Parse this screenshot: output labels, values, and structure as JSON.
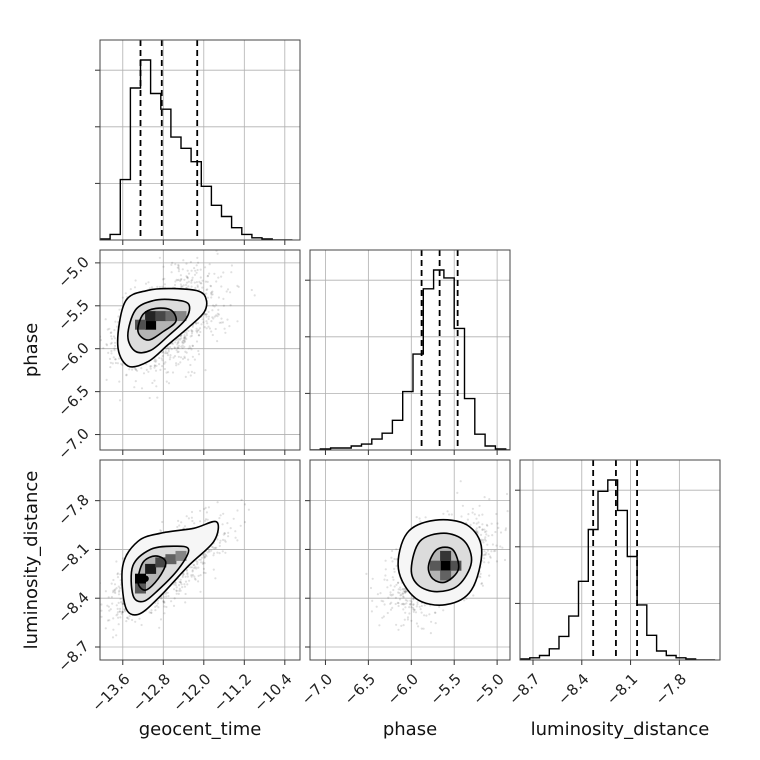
{
  "chart_data": {
    "type": "corner",
    "parameters": [
      "geocent_time",
      "phase",
      "luminosity_distance"
    ],
    "axis_labels": {
      "geocent_time": "geocent_time",
      "phase": "phase",
      "luminosity_distance": "luminosity_distance"
    },
    "ranges": {
      "geocent_time": [
        -14.05,
        -10.1
      ],
      "phase": [
        -7.18,
        -4.85
      ],
      "luminosity_distance": [
        -8.78,
        -7.55
      ]
    },
    "ticks": {
      "geocent_time": [
        -13.6,
        -12.8,
        -12.0,
        -11.2,
        -10.4
      ],
      "phase": [
        -7.0,
        -6.5,
        -6.0,
        -5.5,
        -5.0
      ],
      "luminosity_distance": [
        -8.7,
        -8.4,
        -8.1,
        -7.8
      ]
    },
    "tick_labels": {
      "geocent_time": [
        "−13.6",
        "−12.8",
        "−12.0",
        "−11.2",
        "−10.4"
      ],
      "phase": [
        "−7.0",
        "−6.5",
        "−6.0",
        "−5.5",
        "−5.0"
      ],
      "luminosity_distance": [
        "−8.7",
        "−8.4",
        "−8.1",
        "−7.8"
      ]
    },
    "quantiles": {
      "geocent_time": [
        -13.25,
        -12.83,
        -12.13
      ],
      "phase": [
        -5.88,
        -5.67,
        -5.46
      ],
      "luminosity_distance": [
        -8.33,
        -8.19,
        -8.06
      ]
    },
    "histograms": {
      "geocent_time": {
        "edges": [
          -14.05,
          -13.85,
          -13.65,
          -13.45,
          -13.25,
          -13.05,
          -12.85,
          -12.65,
          -12.45,
          -12.25,
          -12.05,
          -11.85,
          -11.65,
          -11.45,
          -11.25,
          -11.05,
          -10.85,
          -10.65,
          -10.45,
          -10.25
        ],
        "counts": [
          1,
          5,
          54,
          136,
          161,
          131,
          117,
          92,
          82,
          70,
          48,
          31,
          21,
          11,
          5,
          2,
          1,
          0,
          0
        ]
      },
      "phase": {
        "edges": [
          -7.18,
          -7.06,
          -6.94,
          -6.82,
          -6.7,
          -6.58,
          -6.46,
          -6.34,
          -6.22,
          -6.1,
          -5.98,
          -5.86,
          -5.74,
          -5.62,
          -5.5,
          -5.38,
          -5.26,
          -5.14,
          -5.02,
          -4.9,
          -4.85
        ],
        "counts": [
          0,
          1,
          2,
          2,
          4,
          6,
          11,
          17,
          30,
          59,
          97,
          163,
          182,
          174,
          123,
          52,
          16,
          4,
          1,
          0
        ]
      },
      "luminosity_distance": {
        "edges": [
          -8.78,
          -8.72,
          -8.66,
          -8.6,
          -8.54,
          -8.48,
          -8.42,
          -8.36,
          -8.3,
          -8.24,
          -8.18,
          -8.12,
          -8.06,
          -8.0,
          -7.94,
          -7.88,
          -7.82,
          -7.76,
          -7.7,
          -7.64,
          -7.58
        ],
        "counts": [
          1,
          2,
          4,
          10,
          21,
          39,
          70,
          116,
          150,
          160,
          133,
          92,
          49,
          22,
          8,
          4,
          2,
          1,
          0,
          0
        ]
      }
    },
    "pairs": [
      {
        "x": "geocent_time",
        "y": "phase",
        "peak": [
          -13.05,
          -5.72
        ],
        "contours": [
          [
            [
              -13.7,
              -5.95
            ],
            [
              -13.55,
              -5.45
            ],
            [
              -13.1,
              -5.32
            ],
            [
              -12.6,
              -5.3
            ],
            [
              -12.1,
              -5.33
            ],
            [
              -11.95,
              -5.43
            ],
            [
              -12.0,
              -5.58
            ],
            [
              -12.3,
              -5.75
            ],
            [
              -12.7,
              -5.95
            ],
            [
              -13.1,
              -6.15
            ],
            [
              -13.5,
              -6.2
            ]
          ],
          [
            [
              -13.5,
              -5.85
            ],
            [
              -13.35,
              -5.55
            ],
            [
              -13.0,
              -5.44
            ],
            [
              -12.6,
              -5.43
            ],
            [
              -12.3,
              -5.48
            ],
            [
              -12.35,
              -5.65
            ],
            [
              -12.7,
              -5.85
            ],
            [
              -13.05,
              -6.02
            ],
            [
              -13.35,
              -6.03
            ]
          ],
          [
            [
              -13.3,
              -5.8
            ],
            [
              -13.2,
              -5.6
            ],
            [
              -12.95,
              -5.53
            ],
            [
              -12.65,
              -5.55
            ],
            [
              -12.55,
              -5.68
            ],
            [
              -12.8,
              -5.8
            ],
            [
              -13.1,
              -5.9
            ]
          ]
        ],
        "density_blocks": [
          [
            -13.05,
            -5.72,
            1.0
          ],
          [
            -13.05,
            -5.62,
            0.8
          ],
          [
            -12.85,
            -5.62,
            0.6
          ],
          [
            -13.25,
            -5.72,
            0.55
          ],
          [
            -12.65,
            -5.62,
            0.4
          ],
          [
            -12.45,
            -5.62,
            0.25
          ]
        ]
      },
      {
        "x": "geocent_time",
        "y": "luminosity_distance",
        "peak": [
          -13.15,
          -8.28
        ],
        "contours": [
          [
            [
              -13.55,
              -8.45
            ],
            [
              -13.6,
              -8.2
            ],
            [
              -13.3,
              -8.05
            ],
            [
              -12.85,
              -8.0
            ],
            [
              -12.2,
              -7.97
            ],
            [
              -11.75,
              -7.93
            ],
            [
              -11.8,
              -8.05
            ],
            [
              -12.3,
              -8.2
            ],
            [
              -12.9,
              -8.4
            ],
            [
              -13.3,
              -8.5
            ]
          ],
          [
            [
              -13.4,
              -8.38
            ],
            [
              -13.4,
              -8.2
            ],
            [
              -13.05,
              -8.1
            ],
            [
              -12.6,
              -8.08
            ],
            [
              -12.3,
              -8.1
            ],
            [
              -12.5,
              -8.22
            ],
            [
              -12.9,
              -8.35
            ],
            [
              -13.2,
              -8.42
            ]
          ],
          [
            [
              -13.3,
              -8.3
            ],
            [
              -13.2,
              -8.18
            ],
            [
              -12.95,
              -8.14
            ],
            [
              -12.75,
              -8.18
            ],
            [
              -12.9,
              -8.28
            ],
            [
              -13.15,
              -8.35
            ]
          ]
        ],
        "density_blocks": [
          [
            -13.25,
            -8.28,
            1.0
          ],
          [
            -13.05,
            -8.22,
            0.85
          ],
          [
            -12.85,
            -8.18,
            0.6
          ],
          [
            -12.65,
            -8.16,
            0.45
          ],
          [
            -13.25,
            -8.34,
            0.5
          ],
          [
            -12.45,
            -8.14,
            0.25
          ]
        ]
      },
      {
        "x": "phase",
        "y": "luminosity_distance",
        "peak": [
          -5.6,
          -8.2
        ],
        "contours": [
          [
            [
              -6.15,
              -8.22
            ],
            [
              -6.05,
              -8.0
            ],
            [
              -5.72,
              -7.92
            ],
            [
              -5.35,
              -7.95
            ],
            [
              -5.18,
              -8.1
            ],
            [
              -5.3,
              -8.35
            ],
            [
              -5.6,
              -8.44
            ],
            [
              -5.95,
              -8.4
            ]
          ],
          [
            [
              -6.0,
              -8.22
            ],
            [
              -5.9,
              -8.05
            ],
            [
              -5.62,
              -8.0
            ],
            [
              -5.38,
              -8.05
            ],
            [
              -5.3,
              -8.18
            ],
            [
              -5.45,
              -8.32
            ],
            [
              -5.7,
              -8.36
            ],
            [
              -5.92,
              -8.32
            ]
          ],
          [
            [
              -5.8,
              -8.2
            ],
            [
              -5.7,
              -8.1
            ],
            [
              -5.52,
              -8.1
            ],
            [
              -5.45,
              -8.22
            ],
            [
              -5.6,
              -8.3
            ],
            [
              -5.75,
              -8.28
            ]
          ]
        ],
        "density_blocks": [
          [
            -5.6,
            -8.2,
            1.0
          ],
          [
            -5.6,
            -8.14,
            0.7
          ],
          [
            -5.48,
            -8.2,
            0.55
          ],
          [
            -5.72,
            -8.2,
            0.5
          ],
          [
            -5.6,
            -8.26,
            0.45
          ]
        ]
      }
    ],
    "scatter": {
      "geocent_time|phase": {
        "center": [
          -12.75,
          -5.7
        ],
        "sd": [
          0.5,
          0.28
        ],
        "rho": 0.45
      },
      "geocent_time|luminosity_distance": {
        "center": [
          -12.75,
          -8.22
        ],
        "sd": [
          0.5,
          0.14
        ],
        "rho": 0.7
      },
      "phase|luminosity_distance": {
        "center": [
          -5.65,
          -8.2
        ],
        "sd": [
          0.28,
          0.14
        ],
        "rho": 0.55
      }
    }
  }
}
